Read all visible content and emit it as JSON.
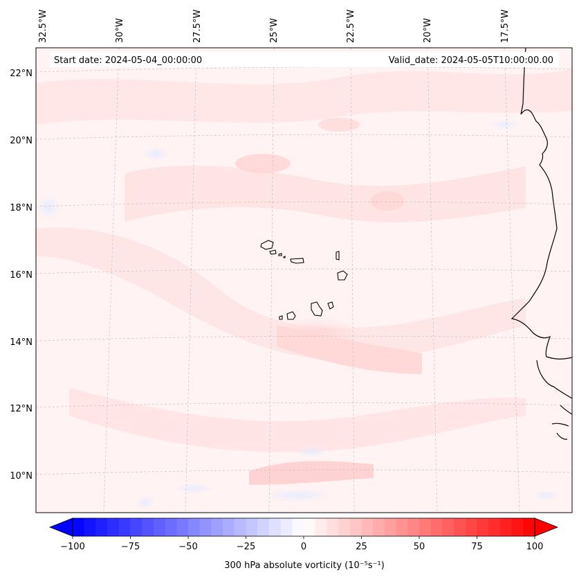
{
  "header": {
    "start_date": "Start date: 2024-05-04_00:00:00",
    "valid_date": "Valid_date: 2024-05-05T10:00:00.00"
  },
  "map": {
    "longitude_labels": [
      "32.5°W",
      "30°W",
      "27.5°W",
      "25°W",
      "22.5°W",
      "20°W",
      "17.5°W"
    ],
    "latitude_labels": [
      "22°N",
      "20°N",
      "18°N",
      "16°N",
      "14°N",
      "12°N",
      "10°N"
    ],
    "gridlines": true,
    "coastline_color": "#000000",
    "features": [
      "west-africa-coastline",
      "cape-verde-islands"
    ]
  },
  "colorbar": {
    "label": "300 hPa absolute vorticity (10⁻⁵s⁻¹)",
    "ticks": [
      "−100",
      "−75",
      "−50",
      "−25",
      "0",
      "25",
      "50",
      "75",
      "100"
    ],
    "range": [
      -100,
      100
    ],
    "colormap": "bwr",
    "colors": {
      "min": "#0000ff",
      "mid": "#ffffff",
      "max": "#ff0000"
    }
  }
}
